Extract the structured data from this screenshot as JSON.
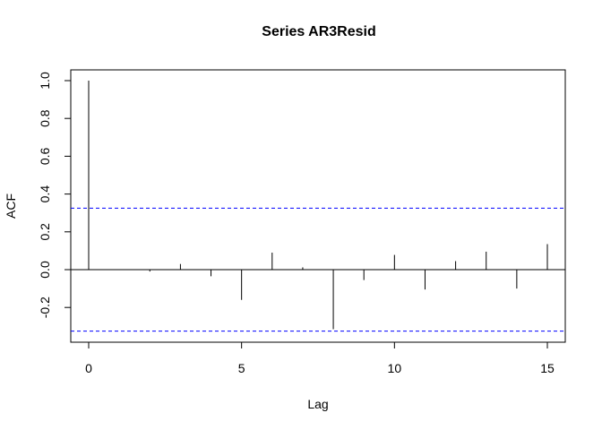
{
  "chart_data": {
    "type": "bar",
    "subtype": "acf",
    "title": "Series  AR3Resid",
    "xlabel": "Lag",
    "ylabel": "ACF",
    "xlim": [
      0,
      15
    ],
    "ylim": [
      -0.33,
      1.0
    ],
    "x_ticks": [
      0,
      5,
      10,
      15
    ],
    "x_tick_labels": [
      "0",
      "5",
      "10",
      "15"
    ],
    "y_ticks": [
      -0.2,
      0.0,
      0.2,
      0.4,
      0.6,
      0.8,
      1.0
    ],
    "y_tick_labels": [
      "-0.2",
      "0.0",
      "0.2",
      "0.4",
      "0.6",
      "0.8",
      "1.0"
    ],
    "grid": false,
    "x": [
      0,
      1,
      2,
      3,
      4,
      5,
      6,
      7,
      8,
      9,
      10,
      11,
      12,
      13,
      14,
      15
    ],
    "values": [
      1.0,
      0.002,
      -0.01,
      0.03,
      -0.035,
      -0.16,
      0.09,
      0.012,
      -0.315,
      -0.055,
      0.078,
      -0.105,
      0.045,
      0.095,
      -0.1,
      0.135
    ],
    "confidence_bound": 0.325,
    "colors": {
      "bars": "#000000",
      "zero_line": "#000000",
      "confidence": "#0000ff",
      "frame": "#000000"
    }
  }
}
